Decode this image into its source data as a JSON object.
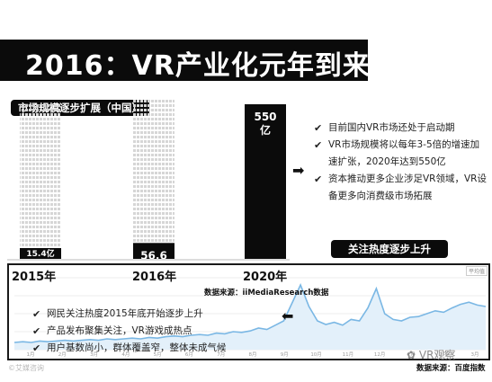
{
  "slide": {
    "title": "2016：VR产业化元年到来",
    "market_label": "市场规模逐步扩展（中国）",
    "bullets_right": [
      "目前国内VR市场还处于启动期",
      "VR市场规模将以每年3-5倍的增速加速扩张，2020年达到550亿",
      "资本推动更多企业涉足VR领域，VR设备更多向消费级市场拓展"
    ],
    "heat_label": "关注热度逐步上升",
    "source_1": "数据来源：iiMediaResearch数据",
    "bullets_left": [
      "网民关注热度2015年底开始逐步上升",
      "产品发布聚集关注，VR游戏成热点",
      "用户基数尚小，群体覆盖窄，整体未成气候"
    ],
    "source_2": "数据来源：百度指数",
    "watermark_left": "©艾媒咨询",
    "watermark_right": "VR观察",
    "legend_tag": "平均值",
    "colors": {
      "ink": "#0b0b0b",
      "line": "#7ab7e4",
      "bar_pattern": "#d6d6d6"
    },
    "icons": [
      "check-icon",
      "arrow-right-icon",
      "arrow-left-icon"
    ]
  },
  "chart_data": [
    {
      "type": "bar",
      "title": "市场规模逐步扩展（中国）",
      "categories": [
        "2015年",
        "2016年",
        "2020年"
      ],
      "values": [
        15.4,
        56.6,
        550
      ],
      "data_labels": [
        "15.4亿",
        "56.6\n亿",
        "550\n亿"
      ],
      "unit": "亿"
    },
    {
      "type": "line",
      "title": "关注热度逐步上升",
      "x_tick_labels": [
        "1月",
        "2月",
        "3月",
        "4月",
        "5月",
        "6月",
        "7月",
        "8月",
        "9月",
        "10月",
        "11月",
        "12月",
        "1月",
        "2月",
        "3月"
      ],
      "series": [
        {
          "values": [
            1.0,
            1.1,
            1.0,
            1.2,
            1.1,
            1.2,
            1.3,
            1.2,
            1.3,
            1.4,
            1.3,
            1.5,
            1.4,
            1.5,
            1.6,
            1.5,
            1.7,
            1.6,
            1.8,
            1.9,
            1.8,
            2.0,
            2.1,
            2.0,
            2.3,
            2.2,
            2.5,
            2.4,
            2.6,
            3.0,
            2.8,
            3.4,
            4.0,
            6.5,
            9.0,
            6.0,
            4.0,
            3.5,
            3.8,
            3.4,
            4.2,
            4.0,
            5.8,
            8.5,
            5.0,
            4.2,
            4.0,
            4.5,
            4.6,
            5.0,
            5.4,
            5.2,
            5.8,
            6.3,
            6.6,
            6.2,
            6.0
          ]
        }
      ]
    }
  ]
}
